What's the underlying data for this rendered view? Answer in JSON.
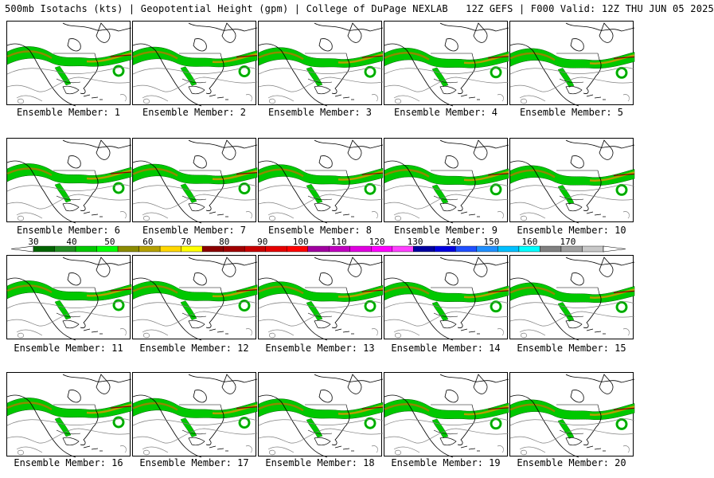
{
  "header": {
    "left": "500mb Isotachs (kts) | Geopotential Height (gpm) | College of DuPage NEXLAB",
    "right": "12Z GEFS | F000 Valid: 12Z THU JUN 05 2025"
  },
  "panels": [
    {
      "label": "Ensemble Member: 1"
    },
    {
      "label": "Ensemble Member: 2"
    },
    {
      "label": "Ensemble Member: 3"
    },
    {
      "label": "Ensemble Member: 4"
    },
    {
      "label": "Ensemble Member: 5"
    },
    {
      "label": "Ensemble Member: 6"
    },
    {
      "label": "Ensemble Member: 7"
    },
    {
      "label": "Ensemble Member: 8"
    },
    {
      "label": "Ensemble Member: 9"
    },
    {
      "label": "Ensemble Member: 10"
    },
    {
      "label": "Ensemble Member: 11"
    },
    {
      "label": "Ensemble Member: 12"
    },
    {
      "label": "Ensemble Member: 13"
    },
    {
      "label": "Ensemble Member: 14"
    },
    {
      "label": "Ensemble Member: 15"
    },
    {
      "label": "Ensemble Member: 16"
    },
    {
      "label": "Ensemble Member: 17"
    },
    {
      "label": "Ensemble Member: 18"
    },
    {
      "label": "Ensemble Member: 19"
    },
    {
      "label": "Ensemble Member: 20"
    }
  ],
  "colorbar": {
    "ticks": [
      "30",
      "40",
      "50",
      "60",
      "70",
      "80",
      "90",
      "100",
      "110",
      "120",
      "130",
      "140",
      "150",
      "160",
      "170"
    ],
    "colors": [
      "#006400",
      "#228b22",
      "#00c800",
      "#00ff00",
      "#8b8b00",
      "#b4a000",
      "#ffd700",
      "#ffff00",
      "#8b0000",
      "#a00000",
      "#c80000",
      "#e60000",
      "#ff0000",
      "#a000a0",
      "#c000c0",
      "#e000e0",
      "#ff00ff",
      "#ff40ff",
      "#0000a0",
      "#0000e0",
      "#2050ff",
      "#2090ff",
      "#00c0ff",
      "#00ffff",
      "#808080",
      "#a0a0a0",
      "#c8c8c8"
    ]
  }
}
